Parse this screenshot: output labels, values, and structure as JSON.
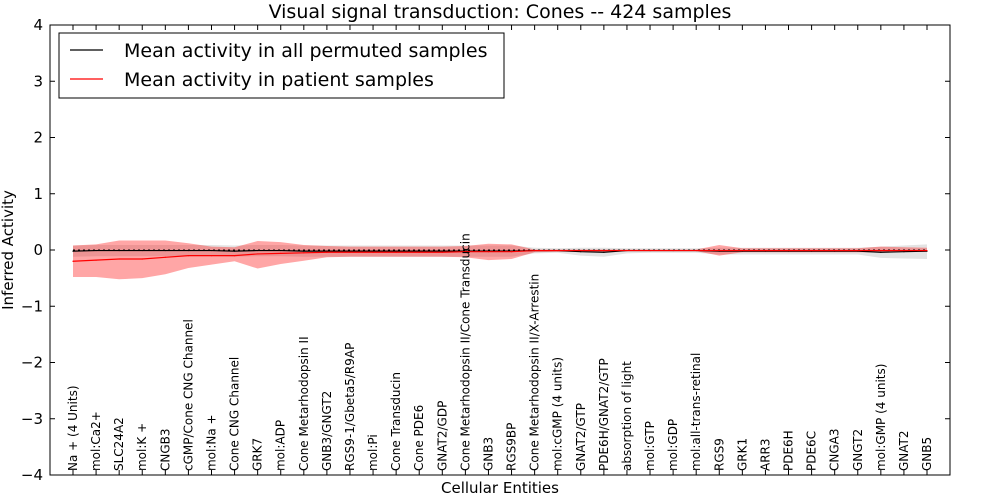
{
  "chart_data": {
    "type": "line",
    "title": "Visual signal transduction: Cones -- 424 samples",
    "xlabel": "Cellular Entities",
    "ylabel": "Inferred Activity",
    "ylim": [
      -4,
      4
    ],
    "yticks": [
      -4,
      -3,
      -2,
      -1,
      0,
      1,
      2,
      3,
      4
    ],
    "ytick_labels": [
      "−4",
      "−3",
      "−2",
      "−1",
      "0",
      "1",
      "2",
      "3",
      "4"
    ],
    "legend_position": "top-left",
    "categories": [
      "Na + (4 Units)",
      "mol:Ca2+",
      "SLC24A2",
      "mol:K +",
      "CNGB3",
      "cGMP/Cone CNG Channel",
      "mol:Na +",
      "Cone CNG Channel",
      "GRK7",
      "mol:ADP",
      "Cone Metarhodopsin II",
      "GNB3/GNGT2",
      "RGS9-1/Gbeta5/R9AP",
      "mol:Pi",
      "Cone Transducin",
      "Cone PDE6",
      "GNAT2/GDP",
      "Cone Metarhodopsin II/Cone Transducin",
      "GNB3",
      "RGS9BP",
      "Cone Metarhodopsin II/X-Arrestin",
      "mol:cGMP (4 units)",
      "GNAT2/GTP",
      "PDE6H/GNAT2/GTP",
      "absorption of light",
      "mol:GTP",
      "mol:GDP",
      "mol:all-trans-retinal",
      "RGS9",
      "GRK1",
      "ARR3",
      "PDE6H",
      "PDE6C",
      "CNGA3",
      "GNGT2",
      "mol:GMP (4 units)",
      "GNAT2",
      "GNB5"
    ],
    "series": [
      {
        "name": "Mean activity in all permuted samples",
        "color": "#000000",
        "band_color": "#c8c8c8",
        "values": [
          -0.02,
          -0.01,
          -0.01,
          -0.01,
          -0.01,
          -0.01,
          -0.01,
          -0.02,
          -0.01,
          -0.01,
          -0.02,
          -0.02,
          -0.02,
          -0.02,
          -0.02,
          -0.02,
          -0.02,
          -0.02,
          -0.02,
          -0.02,
          -0.01,
          -0.01,
          -0.03,
          -0.04,
          -0.01,
          -0.01,
          -0.01,
          -0.01,
          -0.02,
          -0.02,
          -0.02,
          -0.02,
          -0.02,
          -0.02,
          -0.02,
          -0.04,
          -0.03,
          -0.02
        ],
        "band_lower": [
          -0.12,
          -0.11,
          -0.11,
          -0.11,
          -0.11,
          -0.11,
          -0.11,
          -0.12,
          -0.11,
          -0.11,
          -0.12,
          -0.12,
          -0.12,
          -0.12,
          -0.12,
          -0.12,
          -0.12,
          -0.12,
          -0.12,
          -0.12,
          -0.06,
          -0.05,
          -0.1,
          -0.12,
          -0.06,
          -0.05,
          -0.05,
          -0.05,
          -0.08,
          -0.08,
          -0.08,
          -0.08,
          -0.08,
          -0.08,
          -0.08,
          -0.14,
          -0.15,
          -0.16
        ],
        "band_upper": [
          0.08,
          0.09,
          0.09,
          0.09,
          0.09,
          0.09,
          0.09,
          0.08,
          0.09,
          0.09,
          0.08,
          0.08,
          0.08,
          0.08,
          0.08,
          0.08,
          0.08,
          0.08,
          0.08,
          0.08,
          0.04,
          0.03,
          0.04,
          0.04,
          0.03,
          0.03,
          0.03,
          0.03,
          0.04,
          0.04,
          0.04,
          0.04,
          0.04,
          0.04,
          0.04,
          0.06,
          0.08,
          0.1
        ]
      },
      {
        "name": "Mean activity in patient samples",
        "color": "#ff0000",
        "band_color": "#ff0000",
        "values": [
          -0.2,
          -0.18,
          -0.16,
          -0.16,
          -0.13,
          -0.1,
          -0.1,
          -0.1,
          -0.07,
          -0.06,
          -0.05,
          -0.04,
          -0.04,
          -0.04,
          -0.04,
          -0.04,
          -0.04,
          -0.03,
          -0.03,
          -0.03,
          -0.01,
          -0.01,
          -0.01,
          -0.01,
          -0.01,
          -0.01,
          -0.01,
          -0.01,
          -0.01,
          -0.01,
          -0.01,
          -0.01,
          -0.01,
          -0.01,
          -0.01,
          -0.01,
          -0.01,
          -0.01
        ],
        "band_lower": [
          -0.48,
          -0.48,
          -0.52,
          -0.5,
          -0.43,
          -0.32,
          -0.26,
          -0.2,
          -0.33,
          -0.25,
          -0.19,
          -0.13,
          -0.12,
          -0.12,
          -0.12,
          -0.12,
          -0.12,
          -0.13,
          -0.18,
          -0.16,
          -0.04,
          -0.03,
          -0.03,
          -0.03,
          -0.02,
          -0.02,
          -0.02,
          -0.02,
          -0.1,
          -0.04,
          -0.04,
          -0.04,
          -0.04,
          -0.04,
          -0.04,
          -0.04,
          -0.03,
          -0.03
        ],
        "band_upper": [
          0.08,
          0.1,
          0.17,
          0.17,
          0.17,
          0.12,
          0.06,
          0.05,
          0.16,
          0.14,
          0.09,
          0.07,
          0.06,
          0.06,
          0.06,
          0.06,
          0.06,
          0.07,
          0.11,
          0.1,
          0.01,
          0.01,
          0.01,
          0.01,
          0.01,
          0.01,
          0.01,
          0.01,
          0.09,
          0.03,
          0.03,
          0.03,
          0.03,
          0.03,
          0.03,
          0.06,
          0.05,
          0.04
        ]
      }
    ]
  }
}
